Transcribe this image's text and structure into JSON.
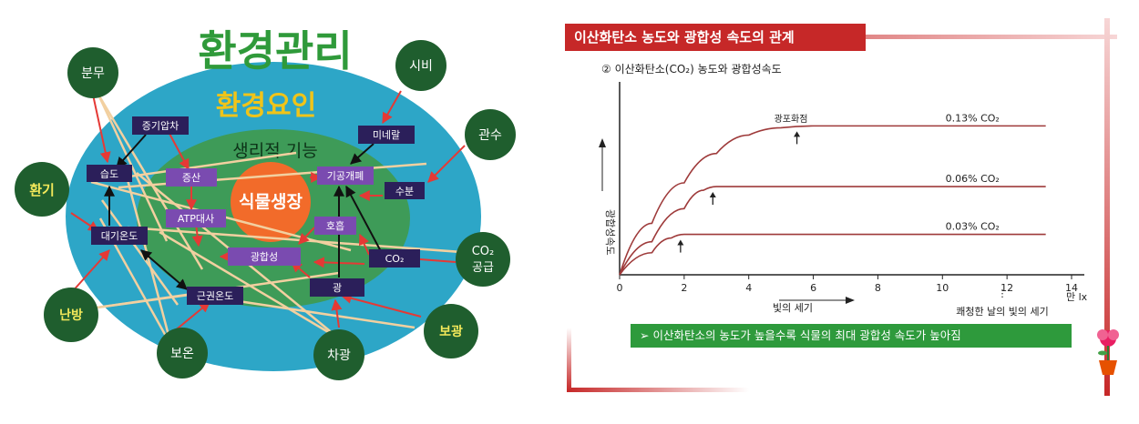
{
  "left_diagram": {
    "title_outer": "환경관리",
    "title_middle": "환경요인",
    "title_inner": "생리적 기능",
    "center": "식물생장",
    "middle_factors": [
      "증기압차",
      "미네랄",
      "습도",
      "수분",
      "대기온도",
      "CO₂",
      "근권온도",
      "광"
    ],
    "inner_functions": [
      "증산",
      "기공개폐",
      "ATP대사",
      "호흡",
      "광합성"
    ],
    "management_outer": [
      "분무",
      "시비",
      "관수",
      "환기",
      "CO₂",
      "공급",
      "난방",
      "보광",
      "보온",
      "차광"
    ]
  },
  "right_chart": {
    "header": "이산화탄소 농도와 광합성 속도의 관계",
    "inner_title": "② 이산화탄소(CO₂) 농도와 광합성속도",
    "ylabel": "광합성속도",
    "xlabel_left": "빛의 세기",
    "xlabel_right": "쾌청한 날의 빛의 세기",
    "unit": "만 lx",
    "saturation_label": "광포화점",
    "conclusion": "➢ 이산화탄소의 농도가 높을수록 식물의 최대 광합성 속도가 높아짐"
  },
  "chart_data": {
    "type": "line",
    "title": "② 이산화탄소(CO₂) 농도와 광합성속도",
    "xlabel": "빛의 세기",
    "ylabel": "광합성속도",
    "x_ticks": [
      0,
      2,
      4,
      6,
      8,
      10,
      12,
      14
    ],
    "xlim": [
      0,
      14
    ],
    "series": [
      {
        "name": "0.13% CO₂",
        "x": [
          0,
          1,
          2,
          3,
          4,
          5,
          6,
          13.2
        ],
        "y": [
          0,
          28,
          50,
          66,
          76,
          80,
          81,
          81
        ]
      },
      {
        "name": "0.06% CO₂",
        "x": [
          0,
          1,
          2,
          2.6,
          3,
          13.2
        ],
        "y": [
          0,
          18,
          36,
          46,
          48,
          48
        ]
      },
      {
        "name": "0.03% CO₂",
        "x": [
          0,
          1,
          1.6,
          2,
          13.2
        ],
        "y": [
          0,
          12,
          20,
          22,
          22
        ]
      }
    ],
    "colors": {
      "line": "#9e3a3a",
      "header": "#c62828",
      "conclusion": "#2e9a3c"
    }
  }
}
